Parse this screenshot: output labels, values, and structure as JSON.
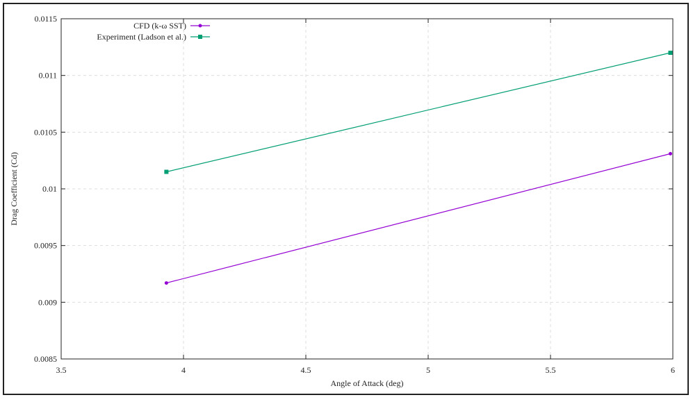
{
  "chart_data": {
    "type": "line",
    "x_label": "Angle of Attack (deg)",
    "y_label": "Drag Coefficient (Cd)",
    "x": [
      3.93,
      5.99
    ],
    "series": [
      {
        "name": "CFD (k-ω SST)",
        "color": "#9400d3",
        "marker": "circle",
        "values": [
          0.00917,
          0.01031
        ]
      },
      {
        "name": "Experiment (Ladson et al.)",
        "color": "#009e73",
        "marker": "square",
        "values": [
          0.01015,
          0.0112
        ]
      }
    ],
    "xlim": [
      3.5,
      6
    ],
    "xticks": [
      3.5,
      4,
      4.5,
      5,
      5.5,
      6
    ],
    "ylim": [
      0.0085,
      0.0115
    ],
    "yticks": [
      0.0085,
      0.009,
      0.0095,
      0.01,
      0.0105,
      0.011,
      0.0115
    ],
    "grid": true,
    "legend": "top-left"
  }
}
